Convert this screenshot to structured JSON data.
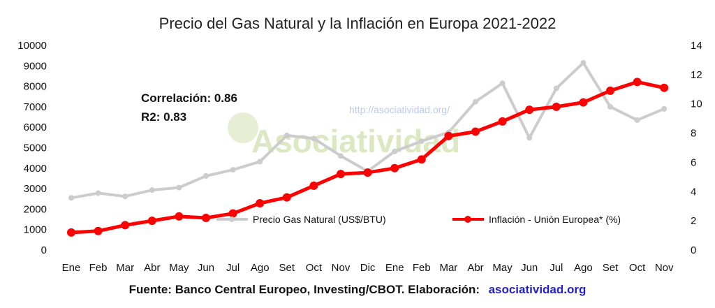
{
  "chart_data": {
    "type": "line",
    "title": "Precio del Gas Natural y la Inflación en Europa 2021-2022",
    "categories": [
      "Ene",
      "Feb",
      "Mar",
      "Abr",
      "May",
      "Jun",
      "Jul",
      "Ago",
      "Set",
      "Oct",
      "Nov",
      "Dic",
      "Ene",
      "Feb",
      "Mar",
      "Abr",
      "May",
      "Jun",
      "Jul",
      "Ago",
      "Set",
      "Oct",
      "Nov"
    ],
    "y_left": {
      "range": [
        0,
        10000
      ],
      "ticks": [
        "0",
        "1000",
        "2000",
        "3000",
        "4000",
        "5000",
        "6000",
        "7000",
        "8000",
        "9000",
        "10000"
      ]
    },
    "y_right": {
      "range": [
        0,
        14
      ],
      "ticks": [
        "0",
        "2",
        "4",
        "6",
        "8",
        "10",
        "12",
        "14"
      ]
    },
    "series": [
      {
        "name": "Precio Gas Natural (US$/BTU)",
        "axis": "left",
        "color": "#cccccc",
        "values": [
          2550,
          2780,
          2620,
          2930,
          3050,
          3620,
          3920,
          4320,
          5600,
          5450,
          4600,
          3850,
          4820,
          5320,
          5750,
          7250,
          8150,
          5480,
          7900,
          9150,
          7000,
          6350,
          6900
        ]
      },
      {
        "name": "Inflación - Unión Europea* (%)",
        "axis": "right",
        "color": "#ff0000",
        "values": [
          1.2,
          1.3,
          1.7,
          2.0,
          2.3,
          2.2,
          2.5,
          3.2,
          3.6,
          4.4,
          5.2,
          5.3,
          5.6,
          6.2,
          7.8,
          8.1,
          8.8,
          9.6,
          9.8,
          10.1,
          10.9,
          11.5,
          11.1
        ]
      }
    ],
    "annotations": [
      "Correlación: 0.86",
      "R2: 0.83"
    ],
    "legend_position": "bottom-center",
    "grid": false
  },
  "watermark": {
    "url": "http://asociatividad.org/",
    "text": "Asociatividad"
  },
  "footer": {
    "text": "Fuente: Banco Central Europeo, Investing/CBOT. Elaboración:",
    "link": "asociatividad.org"
  }
}
